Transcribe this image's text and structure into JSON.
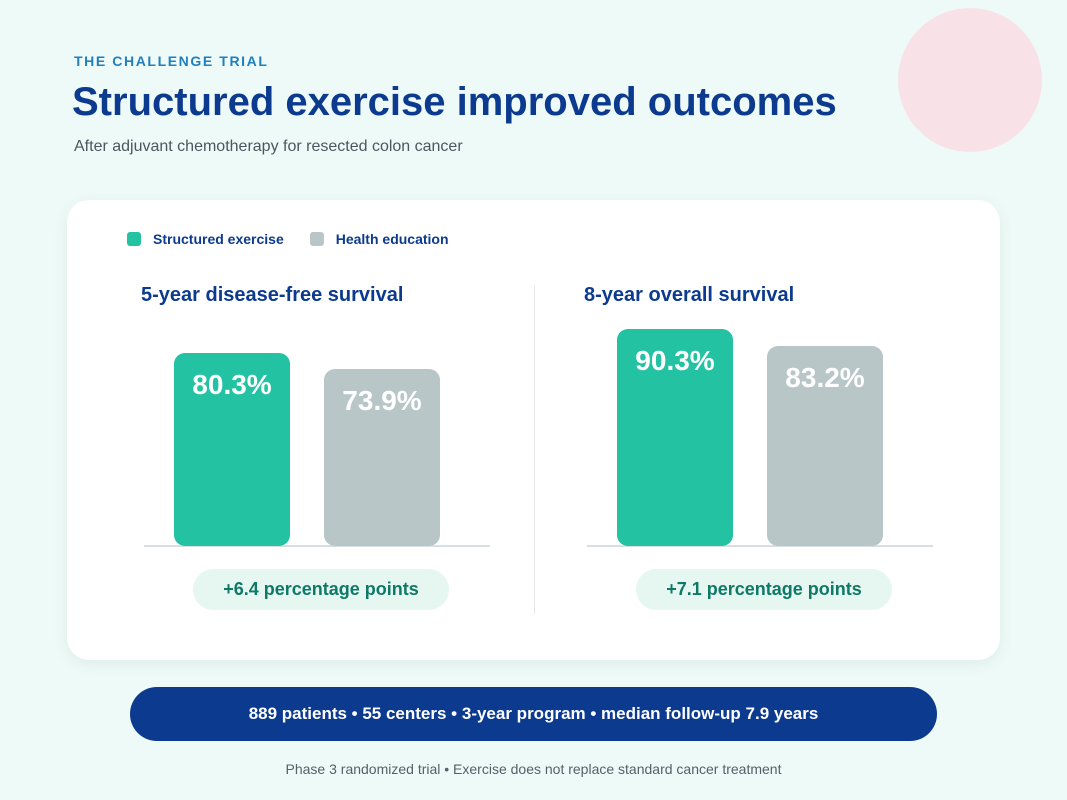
{
  "header": {
    "eyebrow": "THE CHALLENGE TRIAL",
    "title": "Structured exercise improved outcomes",
    "subtitle": "After adjuvant chemotherapy for resected colon cancer"
  },
  "legend": [
    {
      "label": "Structured exercise",
      "color": "#22c2a2"
    },
    {
      "label": "Health education",
      "color": "#b9c6c7"
    }
  ],
  "chart_data": [
    {
      "type": "bar",
      "title": "5-year disease-free survival",
      "categories": [
        "Structured exercise",
        "Health education"
      ],
      "values": [
        80.3,
        73.9
      ],
      "value_labels": [
        "80.3%",
        "73.9%"
      ],
      "colors": [
        "#22c2a2",
        "#b9c6c7"
      ],
      "difference_label": "+6.4 percentage points",
      "grid": false,
      "legend": "top-left"
    },
    {
      "type": "bar",
      "title": "8-year overall survival",
      "categories": [
        "Structured exercise",
        "Health education"
      ],
      "values": [
        90.3,
        83.2
      ],
      "value_labels": [
        "90.3%",
        "83.2%"
      ],
      "colors": [
        "#22c2a2",
        "#b9c6c7"
      ],
      "difference_label": "+7.1 percentage points",
      "grid": false,
      "legend": "top-left"
    }
  ],
  "stats": "889 patients • 55 centers • 3-year program • median follow-up 7.9 years",
  "footnote": "Phase 3 randomized trial • Exercise does not replace standard cancer treatment"
}
